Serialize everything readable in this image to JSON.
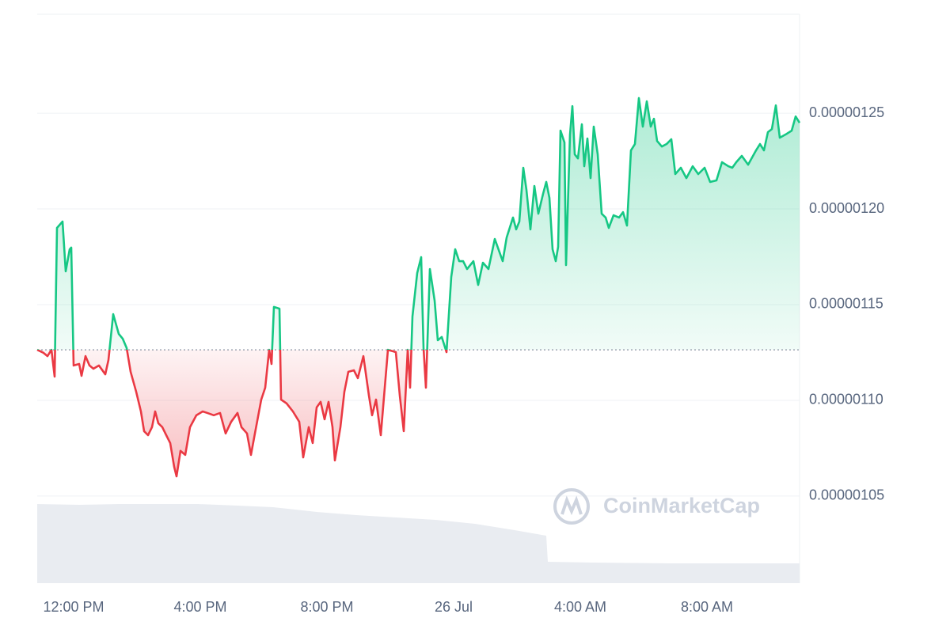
{
  "chart_data": {
    "type": "line",
    "x": [
      10.85,
      11.05,
      11.175,
      11.3,
      11.4,
      11.475,
      11.65,
      11.75,
      11.875,
      11.925,
      12,
      12.175,
      12.25,
      12.375,
      12.5,
      12.625,
      12.8,
      13,
      13.1,
      13.25,
      13.425,
      13.55,
      13.675,
      13.8,
      13.975,
      14.125,
      14.225,
      14.35,
      14.475,
      14.575,
      14.675,
      14.8,
      14.925,
      15.05,
      15.175,
      15.25,
      15.375,
      15.525,
      15.675,
      15.875,
      16.075,
      16.225,
      16.425,
      16.625,
      16.8,
      16.975,
      17.175,
      17.3,
      17.475,
      17.6,
      17.725,
      17.925,
      18.05,
      18.175,
      18.25,
      18.325,
      18.5,
      18.55,
      18.725,
      18.925,
      19.125,
      19.25,
      19.425,
      19.55,
      19.675,
      19.8,
      19.925,
      20.05,
      20.175,
      20.25,
      20.425,
      20.55,
      20.675,
      20.85,
      20.975,
      21.15,
      21.325,
      21.425,
      21.55,
      21.7,
      21.925,
      22.175,
      22.3,
      22.425,
      22.55,
      22.625,
      22.7,
      22.85,
      22.975,
      23.05,
      23.125,
      23.25,
      23.4,
      23.5,
      23.625,
      23.775,
      23.925,
      24.05,
      24.175,
      24.3,
      24.425,
      24.625,
      24.775,
      24.925,
      25.1,
      25.3,
      25.55,
      25.675,
      25.875,
      25.975,
      26.075,
      26.2,
      26.3,
      26.425,
      26.55,
      26.675,
      26.825,
      26.925,
      27.025,
      27.125,
      27.225,
      27.3,
      27.375,
      27.5,
      27.55,
      27.675,
      27.75,
      27.825,
      27.925,
      28.05,
      28.125,
      28.225,
      28.325,
      28.425,
      28.55,
      28.675,
      28.8,
      28.9,
      29.05,
      29.225,
      29.35,
      29.475,
      29.6,
      29.725,
      29.85,
      29.975,
      30.1,
      30.225,
      30.325,
      30.425,
      30.575,
      30.725,
      30.875,
      31,
      31.175,
      31.35,
      31.55,
      31.725,
      31.925,
      32.1,
      32.3,
      32.475,
      32.675,
      32.8,
      32.925,
      33.1,
      33.3,
      33.55,
      33.675,
      33.8,
      33.925,
      34.05,
      34.175,
      34.3,
      34.475,
      34.675,
      34.8,
      34.925
    ],
    "values": [
      1.1264e-06,
      1.1248e-06,
      1.1231e-06,
      1.1264e-06,
      1.1124e-06,
      1.1901e-06,
      1.1934e-06,
      1.1674e-06,
      1.1789e-06,
      1.1798e-06,
      1.1182e-06,
      1.119e-06,
      1.1128e-06,
      1.1231e-06,
      1.1182e-06,
      1.1165e-06,
      1.1182e-06,
      1.1136e-06,
      1.1211e-06,
      1.145e-06,
      1.1347e-06,
      1.1322e-06,
      1.1273e-06,
      1.1149e-06,
      1.1045e-06,
      1.0942e-06,
      1.0839e-06,
      1.0818e-06,
      1.086e-06,
      1.0942e-06,
      1.088e-06,
      1.086e-06,
      1.0818e-06,
      1.0777e-06,
      1.0653e-06,
      1.0603e-06,
      1.0736e-06,
      1.0715e-06,
      1.086e-06,
      1.0922e-06,
      1.0942e-06,
      1.0934e-06,
      1.0922e-06,
      1.0934e-06,
      1.0827e-06,
      1.0888e-06,
      1.0934e-06,
      1.086e-06,
      1.0827e-06,
      1.0715e-06,
      1.0827e-06,
      1.1004e-06,
      1.1066e-06,
      1.1264e-06,
      1.119e-06,
      1.1488e-06,
      1.1479e-06,
      1.1004e-06,
      1.0984e-06,
      1.0942e-06,
      1.0888e-06,
      1.0702e-06,
      1.086e-06,
      1.0777e-06,
      1.0963e-06,
      1.0992e-06,
      1.0901e-06,
      1.0992e-06,
      1.086e-06,
      1.0686e-06,
      1.086e-06,
      1.1045e-06,
      1.1149e-06,
      1.1157e-06,
      1.1116e-06,
      1.1231e-06,
      1.1025e-06,
      1.0922e-06,
      1.1004e-06,
      1.0818e-06,
      1.1264e-06,
      1.1252e-06,
      1.1025e-06,
      1.0839e-06,
      1.1264e-06,
      1.1066e-06,
      1.1438e-06,
      1.1665e-06,
      1.1748e-06,
      1.1273e-06,
      1.1066e-06,
      1.1686e-06,
      1.1521e-06,
      1.1314e-06,
      1.1331e-06,
      1.1252e-06,
      1.1645e-06,
      1.1789e-06,
      1.1727e-06,
      1.1727e-06,
      1.1686e-06,
      1.1727e-06,
      1.1603e-06,
      1.1719e-06,
      1.1686e-06,
      1.1843e-06,
      1.1727e-06,
      1.1851e-06,
      1.1955e-06,
      1.1893e-06,
      1.1934e-06,
      1.2215e-06,
      1.2099e-06,
      1.1893e-06,
      1.212e-06,
      1.1975e-06,
      1.2079e-06,
      1.2141e-06,
      1.2058e-06,
      1.1789e-06,
      1.1727e-06,
      1.1802e-06,
      1.2409e-06,
      1.2347e-06,
      1.1707e-06,
      1.2388e-06,
      1.2537e-06,
      1.2285e-06,
      1.2264e-06,
      1.2442e-06,
      1.2223e-06,
      1.2368e-06,
      1.2161e-06,
      1.243e-06,
      1.2285e-06,
      1.1975e-06,
      1.1955e-06,
      1.1901e-06,
      1.1967e-06,
      1.1955e-06,
      1.1983e-06,
      1.1913e-06,
      1.2306e-06,
      1.2339e-06,
      1.2579e-06,
      1.243e-06,
      1.2562e-06,
      1.243e-06,
      1.2471e-06,
      1.2355e-06,
      1.2326e-06,
      1.2339e-06,
      1.2364e-06,
      1.2182e-06,
      1.2215e-06,
      1.2161e-06,
      1.2223e-06,
      1.2182e-06,
      1.2215e-06,
      1.2141e-06,
      1.2149e-06,
      1.2244e-06,
      1.2223e-06,
      1.2215e-06,
      1.2244e-06,
      1.2277e-06,
      1.2231e-06,
      1.2306e-06,
      1.2339e-06,
      1.2306e-06,
      1.2401e-06,
      1.2417e-06,
      1.2541e-06,
      1.2372e-06,
      1.2388e-06,
      1.2409e-06,
      1.2483e-06,
      1.245e-06
    ],
    "baseline": 1.1264e-06,
    "color": "#16c784",
    "down_color": "#ea3943",
    "xlim": [
      10.85,
      34.925
    ],
    "xticks": [
      {
        "value": 12,
        "label": "12:00 PM"
      },
      {
        "value": 16,
        "label": "4:00 PM"
      },
      {
        "value": 20,
        "label": "8:00 PM"
      },
      {
        "value": 24,
        "label": "26 Jul"
      },
      {
        "value": 28,
        "label": "4:00 AM"
      },
      {
        "value": 32,
        "label": "8:00 AM"
      }
    ],
    "ylim": [
      1.0045e-06,
      1.3017e-06
    ],
    "yticks": [
      {
        "value": 1.05e-06,
        "label": "0.00000105"
      },
      {
        "value": 1.1e-06,
        "label": "0.00000110"
      },
      {
        "value": 1.15e-06,
        "label": "0.00000115"
      },
      {
        "value": 1.2e-06,
        "label": "0.00000120"
      },
      {
        "value": 1.25e-06,
        "label": "0.00000125"
      }
    ],
    "grid": true,
    "volume": {
      "x": [
        10.85,
        12.175,
        13.425,
        14.675,
        15.925,
        17.175,
        18.3,
        19.675,
        20.925,
        22.175,
        23.425,
        24.675,
        25.925,
        26.925,
        26.975,
        28.425,
        30.925,
        34.925
      ],
      "values": [
        100,
        99,
        100,
        100,
        100,
        98,
        96,
        90,
        86,
        83,
        80,
        75,
        67,
        60,
        27,
        26,
        25,
        25
      ],
      "ylim": [
        0,
        100
      ],
      "color": "#e9ecf1"
    },
    "watermark": "CoinMarketCap"
  }
}
